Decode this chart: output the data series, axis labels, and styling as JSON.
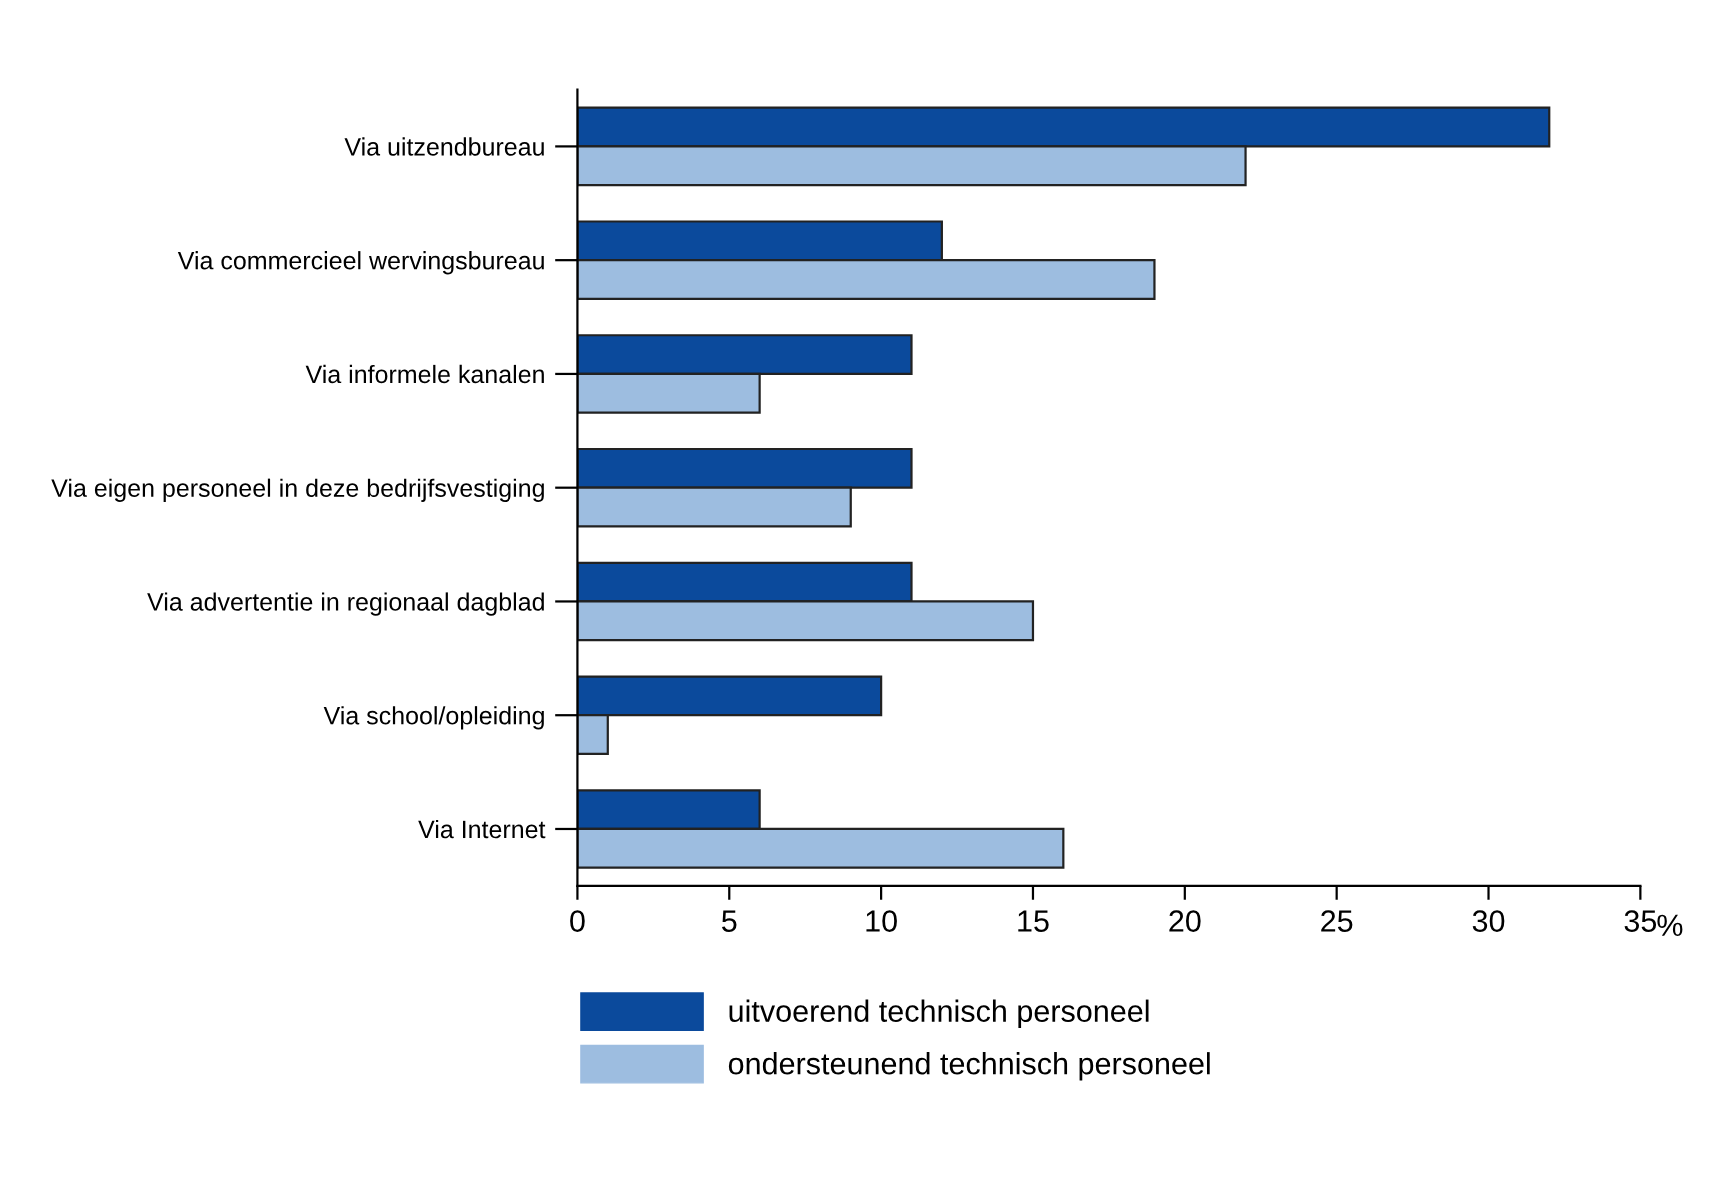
{
  "chart_data": {
    "type": "bar",
    "orientation": "horizontal",
    "xlabel": "%",
    "categories": [
      "Via uitzendbureau",
      "Via commercieel wervingsbureau",
      "Via informele kanalen",
      "Via eigen personeel in deze bedrijfsvestiging",
      "Via advertentie in regionaal dagblad",
      "Via school/opleiding",
      "Via Internet"
    ],
    "series": [
      {
        "name": "uitvoerend technisch personeel",
        "color": "#0b4a9c",
        "values": [
          32,
          12,
          11,
          11,
          11,
          10,
          6
        ]
      },
      {
        "name": "ondersteunend technisch personeel",
        "color": "#9dbde0",
        "values": [
          22,
          19,
          6,
          9,
          15,
          1,
          16
        ]
      }
    ],
    "xlim": [
      0,
      35
    ],
    "xticks": [
      0,
      5,
      10,
      15,
      20,
      25,
      30,
      35
    ],
    "grid": false,
    "legend": "bottom"
  }
}
